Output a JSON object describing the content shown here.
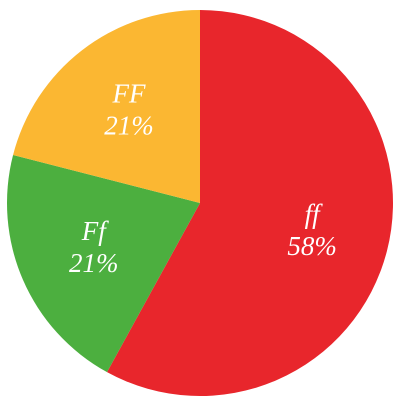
{
  "chart_data": {
    "type": "pie",
    "categories": [
      "ff",
      "Ff",
      "FF"
    ],
    "values": [
      58,
      21,
      21
    ],
    "value_labels": [
      "58%",
      "21%",
      "21%"
    ],
    "colors": [
      "#e8262c",
      "#4caf3f",
      "#fbb732"
    ]
  }
}
